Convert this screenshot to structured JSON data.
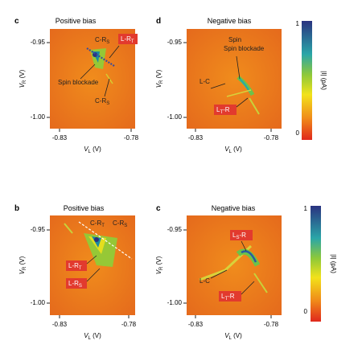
{
  "colors": {
    "map_low": "#e8641e",
    "map_mid": "#f08a1a",
    "yellow": "#f2e21a",
    "green": "#6cc24a",
    "teal": "#2aa6a8",
    "blue": "#2a3d9a",
    "label_red": "#e23a2e",
    "axis": "#222222"
  },
  "chart_data": [
    {
      "panel": "c",
      "type": "heatmap",
      "title": "Positive bias",
      "xlabel": "V_L (V)",
      "ylabel": "V_R (V)",
      "xlim": [
        -0.84,
        -0.78
      ],
      "ylim": [
        -1.02,
        -0.93
      ],
      "x_ticks": [
        "-0.83",
        "-0.78"
      ],
      "y_ticks": [
        "-0.95",
        "-1.00"
      ],
      "annotations": [
        {
          "text": "C-R",
          "sub": "S",
          "style": "dark"
        },
        {
          "text": "L-R",
          "sub": "T",
          "style": "red-box"
        },
        {
          "text": "Spin blockade",
          "style": "dark"
        },
        {
          "text": "C-R",
          "sub": "S",
          "style": "dark"
        }
      ]
    },
    {
      "panel": "d",
      "type": "heatmap",
      "title": "Negative bias",
      "xlabel": "V_L (V)",
      "ylabel": "V_R (V)",
      "xlim": [
        -0.84,
        -0.78
      ],
      "ylim": [
        -1.02,
        -0.93
      ],
      "x_ticks": [
        "-0.83",
        "-0.78"
      ],
      "y_ticks": [
        "-0.95",
        "-1.00"
      ],
      "annotations": [
        {
          "text": "Spin blockade",
          "style": "dark"
        },
        {
          "text": "L-C",
          "style": "dark"
        },
        {
          "text": "L",
          "sub": "T",
          "suffix": "-R",
          "style": "red-box"
        }
      ]
    },
    {
      "panel": "b",
      "type": "heatmap",
      "title": "Positive bias",
      "xlabel": "V_L (V)",
      "ylabel": "V_R (V)",
      "xlim": [
        -0.84,
        -0.78
      ],
      "ylim": [
        -1.02,
        -0.93
      ],
      "x_ticks": [
        "-0.83",
        "-0.78"
      ],
      "y_ticks": [
        "-0.95",
        "-1.00"
      ],
      "annotations": [
        {
          "text": "C-R",
          "sub": "T",
          "style": "dark"
        },
        {
          "text": "C-R",
          "sub": "S",
          "style": "dark"
        },
        {
          "text": "L-R",
          "sub": "T",
          "style": "red-box"
        },
        {
          "text": "L-R",
          "sub": "S",
          "style": "red-box"
        }
      ]
    },
    {
      "panel": "c",
      "type": "heatmap",
      "title": "Negative bias",
      "xlabel": "V_L (V)",
      "ylabel": "V_R (V)",
      "xlim": [
        -0.84,
        -0.78
      ],
      "ylim": [
        -1.02,
        -0.93
      ],
      "x_ticks": [
        "-0.83",
        "-0.78"
      ],
      "y_ticks": [
        "-0.95",
        "-1.00"
      ],
      "annotations": [
        {
          "text": "L",
          "sub": "S",
          "suffix": "-R",
          "style": "red-box"
        },
        {
          "text": "L-C",
          "style": "dark"
        },
        {
          "text": "L",
          "sub": "T",
          "suffix": "-R",
          "style": "red-box"
        }
      ]
    }
  ],
  "colorbars": [
    {
      "label": "|I| (pA)",
      "max_label": "1",
      "min_label": "0"
    },
    {
      "label": "|I| (pA)",
      "max_label": "1",
      "min_label": "0"
    }
  ]
}
